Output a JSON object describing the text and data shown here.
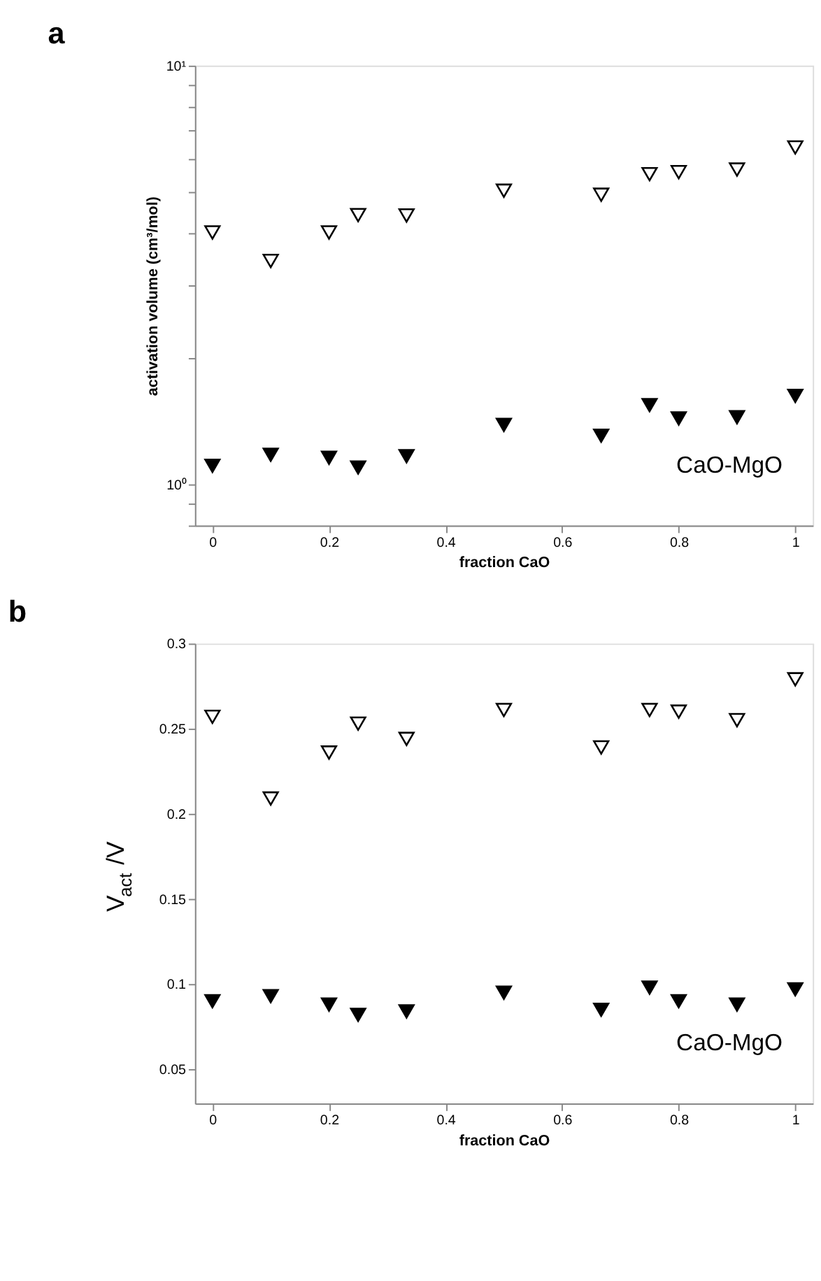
{
  "chart_data": [
    {
      "type": "scatter",
      "title": "a",
      "xlabel": "fraction CaO",
      "ylabel": "activation volume (cm³/mol)",
      "log": true,
      "grid": false,
      "marker": "triangle",
      "x": [
        0,
        0.1,
        0.2,
        0.25,
        0.333,
        0.5,
        0.667,
        0.75,
        0.8,
        0.9,
        1
      ],
      "xlim": [
        -0.03,
        1.03
      ],
      "xticks": [
        0,
        0.2,
        0.4,
        0.6,
        0.8,
        1
      ],
      "ylim": [
        0.8,
        10
      ],
      "yticks": [
        {
          "value": 0.8,
          "label": null
        },
        {
          "value": 0.9,
          "label": null
        },
        {
          "value": 1,
          "label": "10⁰"
        },
        {
          "value": 2,
          "label": null
        },
        {
          "value": 3,
          "label": null
        },
        {
          "value": 4,
          "label": null
        },
        {
          "value": 5,
          "label": null
        },
        {
          "value": 6,
          "label": null
        },
        {
          "value": 7,
          "label": null
        },
        {
          "value": 8,
          "label": null
        },
        {
          "value": 9,
          "label": null
        },
        {
          "value": 10,
          "label": "10¹"
        }
      ],
      "series": [
        {
          "color": "#ffffff",
          "values": [
            4.0,
            3.42,
            4.0,
            4.4,
            4.39,
            5.03,
            4.92,
            5.51,
            5.57,
            5.65,
            6.38
          ]
        },
        {
          "color": "#000000",
          "values": [
            1.11,
            1.18,
            1.16,
            1.1,
            1.17,
            1.39,
            1.31,
            1.55,
            1.44,
            1.45,
            1.63
          ]
        }
      ],
      "annotations": [
        "CaO-MgO"
      ]
    },
    {
      "type": "scatter",
      "title": "b",
      "xlabel": "fraction CaO",
      "ylabel": "V$_{act}$/V",
      "grid": false,
      "marker": "triangle",
      "x": [
        0,
        0.1,
        0.2,
        0.25,
        0.333,
        0.5,
        0.667,
        0.75,
        0.8,
        0.9,
        1
      ],
      "xlim": [
        -0.03,
        1.03
      ],
      "xticks": [
        0,
        0.2,
        0.4,
        0.6,
        0.8,
        1
      ],
      "ylim": [
        0.03,
        0.3
      ],
      "yticks": [
        0.05,
        0.1,
        0.15,
        0.2,
        0.25,
        0.3
      ],
      "series": [
        {
          "color": "#ffffff",
          "values": [
            0.257,
            0.209,
            0.236,
            0.253,
            0.244,
            0.261,
            0.239,
            0.261,
            0.26,
            0.255,
            0.279
          ]
        },
        {
          "color": "#000000",
          "values": [
            0.09,
            0.093,
            0.088,
            0.082,
            0.084,
            0.095,
            0.085,
            0.098,
            0.09,
            0.088,
            0.097
          ]
        }
      ],
      "annotations": [
        "CaO-MgO"
      ]
    }
  ]
}
